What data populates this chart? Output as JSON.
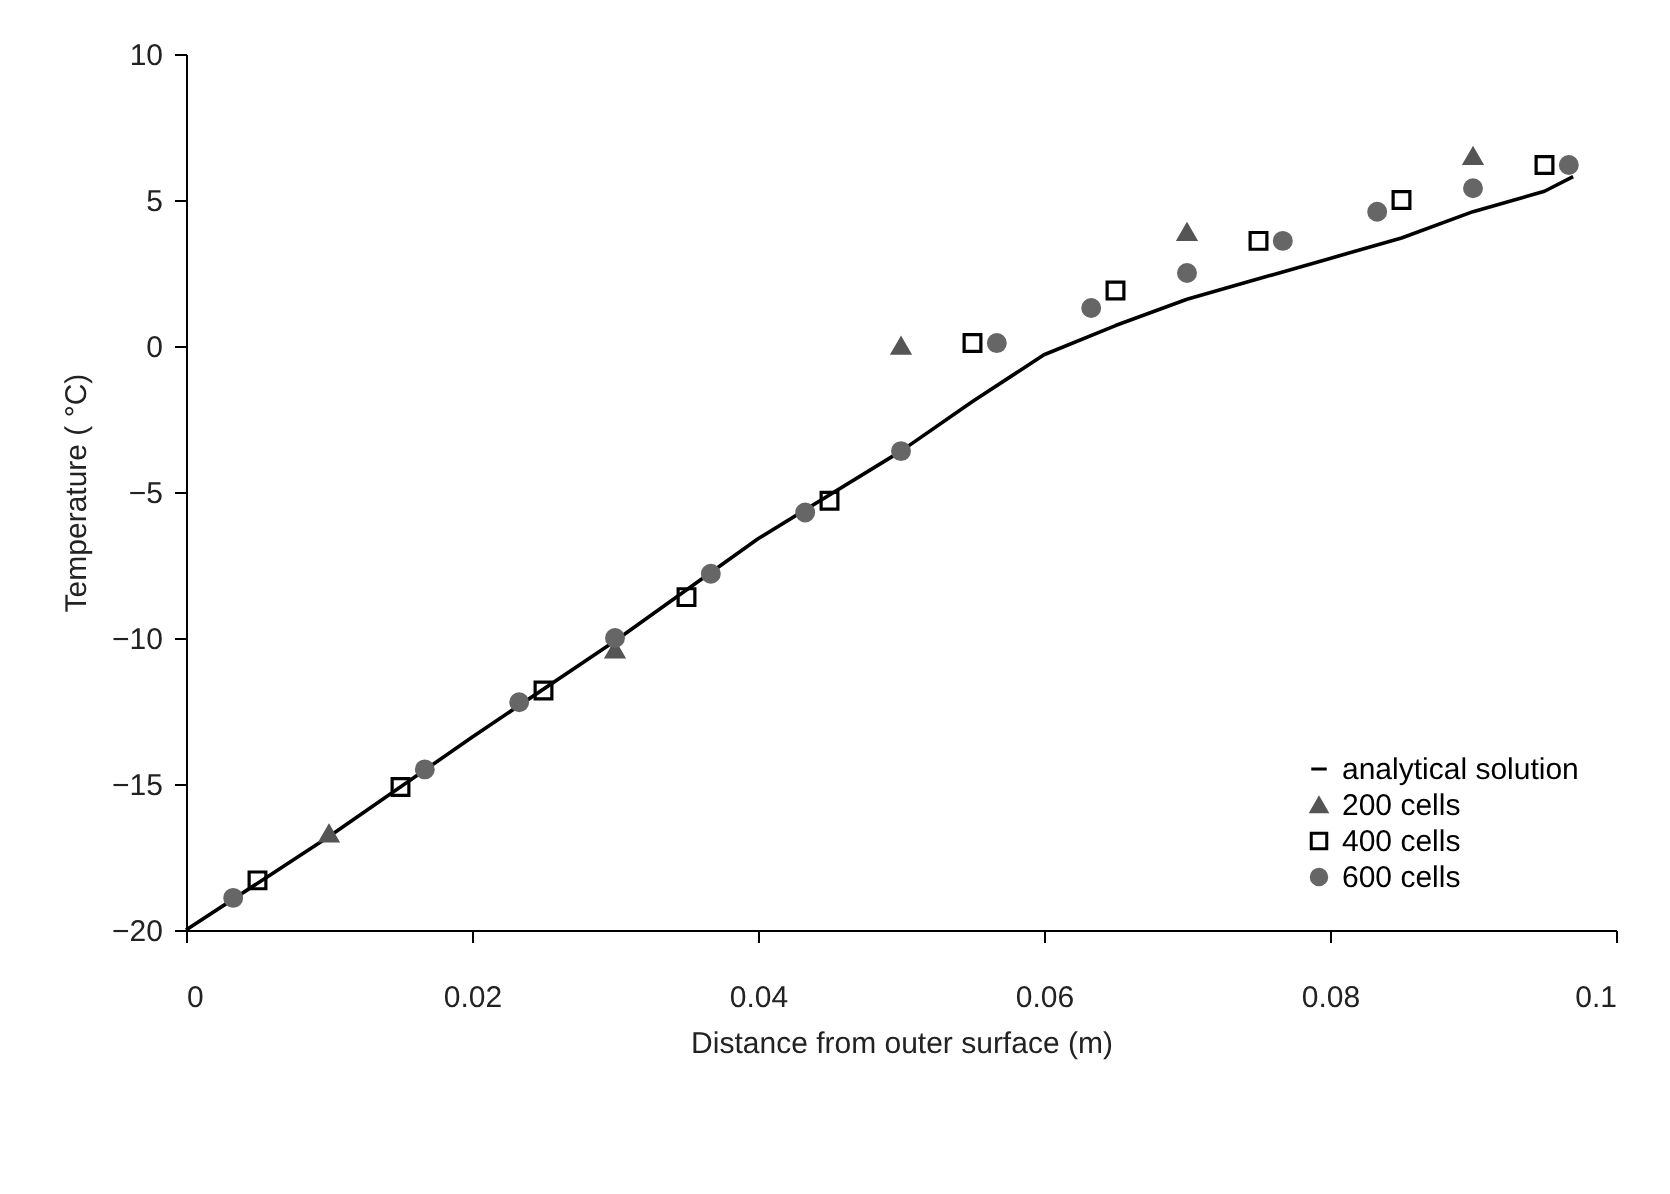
{
  "chart_data": {
    "type": "scatter",
    "xlabel": "Distance from outer surface (m)",
    "ylabel": "Temperature ( °C)",
    "xlim": [
      0,
      0.1
    ],
    "xticks": [
      0,
      0.02,
      0.04,
      0.06,
      0.08,
      0.1
    ],
    "ylim": [
      -20,
      10
    ],
    "yticks": [
      -20,
      -15,
      -10,
      -5,
      0,
      5,
      10
    ],
    "grid": false,
    "legend": "bottom right",
    "series": [
      {
        "name": "analytical solution",
        "type": "line",
        "color": "#000000",
        "marker": "none",
        "line_style": "solid",
        "x": [
          0,
          0.01,
          0.02,
          0.03,
          0.04,
          0.05,
          0.055,
          0.06,
          0.065,
          0.07,
          0.075,
          0.08,
          0.085,
          0.09,
          0.095,
          0.097
        ],
        "values": [
          -20,
          -16.8,
          -13.4,
          -10.1,
          -6.6,
          -3.6,
          -1.9,
          -0.3,
          0.7,
          1.6,
          2.3,
          3.0,
          3.7,
          4.6,
          5.3,
          5.8
        ]
      },
      {
        "name": "200 cells",
        "color": "#555555",
        "marker": "triangle",
        "x": [
          0.01,
          0.03,
          0.05,
          0.07,
          0.09
        ],
        "values": [
          -16.7,
          -10.4,
          0.0,
          3.9,
          6.5
        ]
      },
      {
        "name": "400 cells",
        "color": "#000000",
        "marker": "square",
        "x": [
          0.005,
          0.015,
          0.025,
          0.035,
          0.045,
          0.055,
          0.065,
          0.075,
          0.085,
          0.095
        ],
        "values": [
          -18.3,
          -15.1,
          -11.8,
          -8.6,
          -5.3,
          0.1,
          1.9,
          3.6,
          5.0,
          6.2
        ]
      },
      {
        "name": "600 cells",
        "color": "#666666",
        "marker": "circle",
        "x": [
          0.0033,
          0.0167,
          0.0233,
          0.03,
          0.0367,
          0.0433,
          0.05,
          0.0567,
          0.0633,
          0.07,
          0.0767,
          0.0833,
          0.09,
          0.0967
        ],
        "values": [
          -18.9,
          -14.5,
          -12.2,
          -10.0,
          -7.8,
          -5.7,
          -3.6,
          0.1,
          1.3,
          2.5,
          3.6,
          4.6,
          5.4,
          6.2
        ]
      }
    ]
  }
}
